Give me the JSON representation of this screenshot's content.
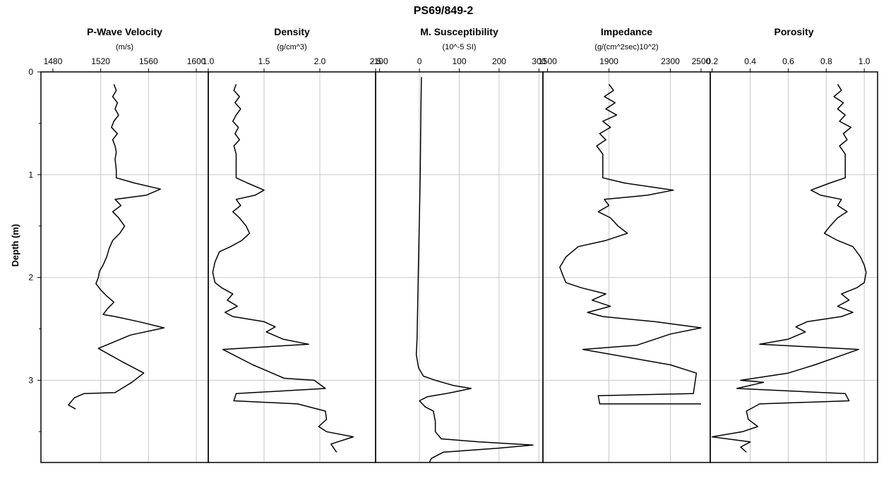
{
  "title": "PS69/849-2",
  "ylabel": "Depth (m)",
  "y_ticks": [
    "0",
    "1",
    "2",
    "3"
  ],
  "ylim": [
    0,
    3.8
  ],
  "colors": {
    "line": "#000000",
    "grid": "#c8c8c8",
    "frame": "#000000"
  },
  "chart_data": [
    {
      "type": "line",
      "title": "P-Wave Velocity",
      "unit": "(m/s)",
      "xlim": [
        1470,
        1610
      ],
      "x_ticks": [
        1480,
        1520,
        1560,
        1600
      ],
      "x_tick_labels": [
        "1480",
        "1520",
        "1560",
        "1600"
      ],
      "grid_x": [
        1520,
        1560,
        1600
      ],
      "points": [
        [
          1531,
          0.12
        ],
        [
          1533,
          0.18
        ],
        [
          1530,
          0.24
        ],
        [
          1534,
          0.3
        ],
        [
          1532,
          0.36
        ],
        [
          1535,
          0.42
        ],
        [
          1531,
          0.48
        ],
        [
          1529,
          0.54
        ],
        [
          1534,
          0.6
        ],
        [
          1530,
          0.66
        ],
        [
          1532,
          0.72
        ],
        [
          1533,
          0.78
        ],
        [
          1532,
          0.85
        ],
        [
          1533,
          0.95
        ],
        [
          1533,
          1.03
        ],
        [
          1548,
          1.08
        ],
        [
          1570,
          1.14
        ],
        [
          1558,
          1.2
        ],
        [
          1532,
          1.24
        ],
        [
          1537,
          1.3
        ],
        [
          1530,
          1.36
        ],
        [
          1535,
          1.42
        ],
        [
          1540,
          1.5
        ],
        [
          1536,
          1.57
        ],
        [
          1530,
          1.64
        ],
        [
          1527,
          1.72
        ],
        [
          1525,
          1.8
        ],
        [
          1522,
          1.88
        ],
        [
          1519,
          1.94
        ],
        [
          1518,
          2.0
        ],
        [
          1516,
          2.06
        ],
        [
          1520,
          2.12
        ],
        [
          1525,
          2.18
        ],
        [
          1531,
          2.24
        ],
        [
          1526,
          2.3
        ],
        [
          1522,
          2.36
        ],
        [
          1532,
          2.38
        ],
        [
          1552,
          2.43
        ],
        [
          1573,
          2.49
        ],
        [
          1545,
          2.56
        ],
        [
          1518,
          2.69
        ],
        [
          1538,
          2.82
        ],
        [
          1556,
          2.93
        ],
        [
          1546,
          3.02
        ],
        [
          1532,
          3.12
        ],
        [
          1506,
          3.13
        ],
        [
          1498,
          3.17
        ],
        [
          1493,
          3.24
        ],
        [
          1499,
          3.28
        ]
      ]
    },
    {
      "type": "line",
      "title": "Density",
      "unit": "(g/cm^3)",
      "xlim": [
        1.0,
        2.5
      ],
      "x_ticks": [
        1.0,
        1.5,
        2.0,
        2.5
      ],
      "x_tick_labels": [
        "1.0",
        "1.5",
        "2.0",
        "2.5"
      ],
      "grid_x": [
        1.5,
        2.0
      ],
      "points": [
        [
          1.25,
          0.12
        ],
        [
          1.23,
          0.18
        ],
        [
          1.28,
          0.24
        ],
        [
          1.24,
          0.3
        ],
        [
          1.29,
          0.36
        ],
        [
          1.25,
          0.42
        ],
        [
          1.22,
          0.48
        ],
        [
          1.27,
          0.54
        ],
        [
          1.24,
          0.6
        ],
        [
          1.28,
          0.66
        ],
        [
          1.23,
          0.72
        ],
        [
          1.25,
          0.8
        ],
        [
          1.25,
          0.9
        ],
        [
          1.25,
          1.03
        ],
        [
          1.35,
          1.08
        ],
        [
          1.5,
          1.15
        ],
        [
          1.42,
          1.2
        ],
        [
          1.25,
          1.24
        ],
        [
          1.29,
          1.3
        ],
        [
          1.22,
          1.36
        ],
        [
          1.28,
          1.42
        ],
        [
          1.34,
          1.5
        ],
        [
          1.37,
          1.57
        ],
        [
          1.3,
          1.64
        ],
        [
          1.2,
          1.7
        ],
        [
          1.1,
          1.75
        ],
        [
          1.06,
          1.85
        ],
        [
          1.04,
          1.95
        ],
        [
          1.06,
          2.05
        ],
        [
          1.12,
          2.1
        ],
        [
          1.22,
          2.16
        ],
        [
          1.17,
          2.22
        ],
        [
          1.26,
          2.28
        ],
        [
          1.15,
          2.34
        ],
        [
          1.22,
          2.38
        ],
        [
          1.5,
          2.43
        ],
        [
          1.6,
          2.48
        ],
        [
          1.52,
          2.53
        ],
        [
          1.67,
          2.6
        ],
        [
          1.9,
          2.65
        ],
        [
          1.13,
          2.7
        ],
        [
          1.4,
          2.85
        ],
        [
          1.68,
          2.98
        ],
        [
          1.95,
          3.0
        ],
        [
          2.05,
          3.08
        ],
        [
          1.25,
          3.13
        ],
        [
          1.23,
          3.2
        ],
        [
          1.8,
          3.23
        ],
        [
          2.05,
          3.3
        ],
        [
          2.06,
          3.38
        ],
        [
          1.99,
          3.45
        ],
        [
          2.06,
          3.5
        ],
        [
          2.3,
          3.55
        ],
        [
          2.1,
          3.62
        ],
        [
          2.15,
          3.7
        ]
      ]
    },
    {
      "type": "line",
      "title": "M. Susceptibility",
      "unit": "(10^-5 SI)",
      "xlim": [
        -110,
        310
      ],
      "x_ticks": [
        -100,
        0,
        100,
        200,
        300
      ],
      "x_tick_labels": [
        "-100",
        "0",
        "100",
        "200",
        "300"
      ],
      "grid_x": [
        0,
        100,
        200,
        300
      ],
      "points": [
        [
          5,
          0.05
        ],
        [
          4,
          0.3
        ],
        [
          3,
          0.6
        ],
        [
          2,
          1.0
        ],
        [
          0,
          1.4
        ],
        [
          -2,
          1.8
        ],
        [
          -4,
          2.2
        ],
        [
          -6,
          2.6
        ],
        [
          -8,
          2.75
        ],
        [
          -2,
          2.88
        ],
        [
          10,
          2.96
        ],
        [
          40,
          3.0
        ],
        [
          85,
          3.05
        ],
        [
          130,
          3.08
        ],
        [
          80,
          3.12
        ],
        [
          20,
          3.16
        ],
        [
          0,
          3.2
        ],
        [
          15,
          3.26
        ],
        [
          35,
          3.3
        ],
        [
          40,
          3.4
        ],
        [
          40,
          3.5
        ],
        [
          55,
          3.57
        ],
        [
          150,
          3.6
        ],
        [
          285,
          3.63
        ],
        [
          200,
          3.66
        ],
        [
          60,
          3.7
        ],
        [
          30,
          3.76
        ],
        [
          25,
          3.8
        ]
      ]
    },
    {
      "type": "line",
      "title": "Impedance",
      "unit": "(g/(cm^2sec)10^2)",
      "xlim": [
        1470,
        2560
      ],
      "x_ticks": [
        1500,
        1900,
        2300,
        2500
      ],
      "x_tick_labels": [
        "1500",
        "1900",
        "2300",
        "2500"
      ],
      "grid_x": [
        1900,
        2300
      ],
      "points": [
        [
          1900,
          0.12
        ],
        [
          1930,
          0.18
        ],
        [
          1870,
          0.24
        ],
        [
          1940,
          0.3
        ],
        [
          1880,
          0.36
        ],
        [
          1950,
          0.42
        ],
        [
          1860,
          0.48
        ],
        [
          1910,
          0.54
        ],
        [
          1840,
          0.6
        ],
        [
          1880,
          0.66
        ],
        [
          1820,
          0.72
        ],
        [
          1860,
          0.8
        ],
        [
          1860,
          0.9
        ],
        [
          1860,
          1.03
        ],
        [
          2000,
          1.08
        ],
        [
          2320,
          1.15
        ],
        [
          2150,
          1.2
        ],
        [
          1870,
          1.24
        ],
        [
          1900,
          1.3
        ],
        [
          1830,
          1.36
        ],
        [
          1910,
          1.42
        ],
        [
          1960,
          1.5
        ],
        [
          2020,
          1.57
        ],
        [
          1880,
          1.64
        ],
        [
          1700,
          1.7
        ],
        [
          1620,
          1.8
        ],
        [
          1580,
          1.9
        ],
        [
          1600,
          1.98
        ],
        [
          1620,
          2.05
        ],
        [
          1720,
          2.1
        ],
        [
          1880,
          2.16
        ],
        [
          1790,
          2.22
        ],
        [
          1910,
          2.28
        ],
        [
          1760,
          2.34
        ],
        [
          1860,
          2.38
        ],
        [
          2200,
          2.43
        ],
        [
          2500,
          2.49
        ],
        [
          2300,
          2.55
        ],
        [
          2080,
          2.66
        ],
        [
          1730,
          2.7
        ],
        [
          2300,
          2.85
        ],
        [
          2470,
          2.93
        ],
        [
          2450,
          3.13
        ],
        [
          1830,
          3.15
        ],
        [
          1840,
          3.23
        ],
        [
          2500,
          3.23
        ]
      ]
    },
    {
      "type": "line",
      "title": "Porosity",
      "unit": "",
      "xlim": [
        0.19,
        1.07
      ],
      "x_ticks": [
        0.2,
        0.4,
        0.6,
        0.8,
        1.0
      ],
      "x_tick_labels": [
        "0.2",
        "0.4",
        "0.6",
        "0.8",
        "1.0"
      ],
      "grid_x": [
        0.4,
        0.6,
        0.8,
        1.0
      ],
      "points": [
        [
          0.86,
          0.12
        ],
        [
          0.88,
          0.18
        ],
        [
          0.84,
          0.24
        ],
        [
          0.89,
          0.3
        ],
        [
          0.86,
          0.36
        ],
        [
          0.9,
          0.42
        ],
        [
          0.87,
          0.48
        ],
        [
          0.93,
          0.54
        ],
        [
          0.89,
          0.6
        ],
        [
          0.91,
          0.66
        ],
        [
          0.87,
          0.72
        ],
        [
          0.9,
          0.8
        ],
        [
          0.9,
          0.9
        ],
        [
          0.9,
          1.03
        ],
        [
          0.82,
          1.08
        ],
        [
          0.72,
          1.15
        ],
        [
          0.77,
          1.2
        ],
        [
          0.88,
          1.24
        ],
        [
          0.86,
          1.3
        ],
        [
          0.91,
          1.36
        ],
        [
          0.86,
          1.42
        ],
        [
          0.82,
          1.5
        ],
        [
          0.79,
          1.57
        ],
        [
          0.86,
          1.64
        ],
        [
          0.94,
          1.7
        ],
        [
          0.98,
          1.8
        ],
        [
          1.0,
          1.88
        ],
        [
          1.01,
          1.95
        ],
        [
          1.0,
          2.05
        ],
        [
          0.96,
          2.1
        ],
        [
          0.88,
          2.16
        ],
        [
          0.92,
          2.22
        ],
        [
          0.86,
          2.28
        ],
        [
          0.94,
          2.34
        ],
        [
          0.88,
          2.38
        ],
        [
          0.7,
          2.43
        ],
        [
          0.64,
          2.48
        ],
        [
          0.69,
          2.53
        ],
        [
          0.6,
          2.6
        ],
        [
          0.45,
          2.65
        ],
        [
          0.97,
          2.7
        ],
        [
          0.74,
          2.85
        ],
        [
          0.6,
          2.93
        ],
        [
          0.35,
          3.0
        ],
        [
          0.47,
          3.02
        ],
        [
          0.33,
          3.08
        ],
        [
          0.9,
          3.13
        ],
        [
          0.92,
          3.2
        ],
        [
          0.45,
          3.23
        ],
        [
          0.38,
          3.3
        ],
        [
          0.39,
          3.38
        ],
        [
          0.44,
          3.45
        ],
        [
          0.36,
          3.5
        ],
        [
          0.2,
          3.55
        ],
        [
          0.4,
          3.6
        ],
        [
          0.35,
          3.65
        ],
        [
          0.38,
          3.7
        ]
      ]
    }
  ]
}
